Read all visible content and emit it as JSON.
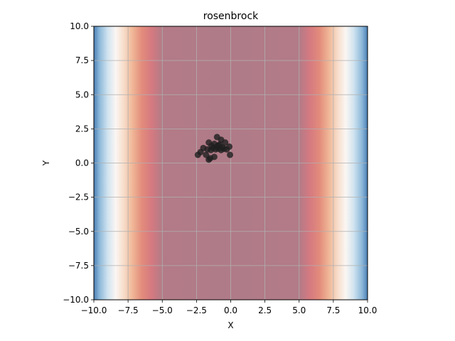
{
  "chart_data": {
    "type": "scatter",
    "title": "rosenbrock",
    "xlabel": "X",
    "ylabel": "Y",
    "xlim": [
      -10,
      10
    ],
    "ylim": [
      -10,
      10
    ],
    "grid": true,
    "xticks": [
      "−10.0",
      "−7.5",
      "−5.0",
      "−2.5",
      "0.0",
      "2.5",
      "5.0",
      "7.5",
      "10.0"
    ],
    "yticks": [
      "−10.0",
      "−7.5",
      "−5.0",
      "−2.5",
      "0.0",
      "2.5",
      "5.0",
      "7.5",
      "10.0"
    ],
    "xtick_values": [
      -10,
      -7.5,
      -5,
      -2.5,
      0,
      2.5,
      5,
      7.5,
      10
    ],
    "ytick_values": [
      -10,
      -7.5,
      -5,
      -2.5,
      0,
      2.5,
      5,
      7.5,
      10
    ],
    "background": {
      "type": "heatmap",
      "colormap": "RdBu_r",
      "varies_along": "x",
      "levels": [
        {
          "x": -10.0,
          "color": "#4a7fb5"
        },
        {
          "x": -9.6,
          "color": "#8bb7d9"
        },
        {
          "x": -9.0,
          "color": "#cfe3ef"
        },
        {
          "x": -8.4,
          "color": "#fbf6f3"
        },
        {
          "x": -7.8,
          "color": "#f7dcc9"
        },
        {
          "x": -7.2,
          "color": "#f0b898"
        },
        {
          "x": -6.5,
          "color": "#e38c7c"
        },
        {
          "x": -5.8,
          "color": "#d67a80"
        },
        {
          "x": -5.0,
          "color": "#b27b87"
        },
        {
          "x": 0.0,
          "color": "#b07b88"
        },
        {
          "x": 5.0,
          "color": "#b27b87"
        },
        {
          "x": 5.8,
          "color": "#d67a80"
        },
        {
          "x": 6.5,
          "color": "#e38c7c"
        },
        {
          "x": 7.2,
          "color": "#f0b898"
        },
        {
          "x": 7.8,
          "color": "#f7dcc9"
        },
        {
          "x": 8.4,
          "color": "#fbf6f3"
        },
        {
          "x": 9.0,
          "color": "#cfe3ef"
        },
        {
          "x": 9.6,
          "color": "#8bb7d9"
        },
        {
          "x": 10.0,
          "color": "#4a7fb5"
        }
      ]
    },
    "series": [
      {
        "color": "#1f1f1f",
        "points": [
          [
            -1.0,
            1.9
          ],
          [
            -0.7,
            1.7
          ],
          [
            -1.6,
            1.5
          ],
          [
            -1.2,
            1.4
          ],
          [
            -0.4,
            1.5
          ],
          [
            -0.9,
            1.3
          ],
          [
            -1.4,
            1.25
          ],
          [
            -1.0,
            1.2
          ],
          [
            -0.6,
            1.15
          ],
          [
            -1.3,
            1.1
          ],
          [
            -0.9,
            1.05
          ],
          [
            -0.5,
            1.05
          ],
          [
            -0.1,
            1.2
          ],
          [
            -2.0,
            1.1
          ],
          [
            -1.7,
            1.0
          ],
          [
            -1.1,
            1.0
          ],
          [
            -0.7,
            0.95
          ],
          [
            -2.2,
            0.8
          ],
          [
            -1.8,
            0.6
          ],
          [
            -2.4,
            0.6
          ],
          [
            -1.2,
            0.45
          ],
          [
            -1.5,
            0.35
          ],
          [
            -1.6,
            0.25
          ],
          [
            -0.05,
            0.6
          ],
          [
            -0.3,
            1.0
          ],
          [
            -1.45,
            0.95
          ],
          [
            -0.8,
            1.35
          ]
        ]
      }
    ]
  }
}
